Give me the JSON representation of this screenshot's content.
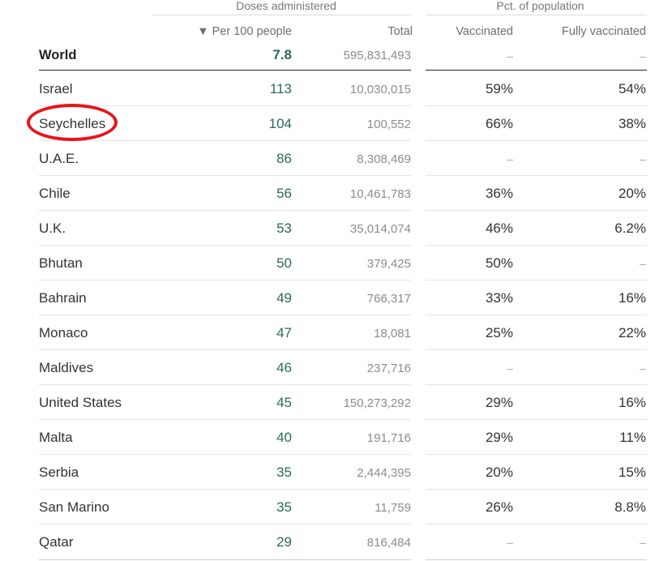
{
  "headers": {
    "group_doses": "Doses administered",
    "group_pct": "Pct. of population",
    "col_per100": "▼ Per 100 people",
    "col_total": "Total",
    "col_vaccinated": "Vaccinated",
    "col_fully": "Fully vaccinated"
  },
  "world": {
    "label": "World",
    "per100": "7.8",
    "total": "595,831,493",
    "vaccinated": "–",
    "fully": "–"
  },
  "rows": [
    {
      "country": "Israel",
      "per100": "113",
      "total": "10,030,015",
      "vaccinated": "59%",
      "fully": "54%"
    },
    {
      "country": "Seychelles",
      "per100": "104",
      "total": "100,552",
      "vaccinated": "66%",
      "fully": "38%"
    },
    {
      "country": "U.A.E.",
      "per100": "86",
      "total": "8,308,469",
      "vaccinated": "–",
      "fully": "–"
    },
    {
      "country": "Chile",
      "per100": "56",
      "total": "10,461,783",
      "vaccinated": "36%",
      "fully": "20%"
    },
    {
      "country": "U.K.",
      "per100": "53",
      "total": "35,014,074",
      "vaccinated": "46%",
      "fully": "6.2%"
    },
    {
      "country": "Bhutan",
      "per100": "50",
      "total": "379,425",
      "vaccinated": "50%",
      "fully": "–"
    },
    {
      "country": "Bahrain",
      "per100": "49",
      "total": "766,317",
      "vaccinated": "33%",
      "fully": "16%"
    },
    {
      "country": "Monaco",
      "per100": "47",
      "total": "18,081",
      "vaccinated": "25%",
      "fully": "22%"
    },
    {
      "country": "Maldives",
      "per100": "46",
      "total": "237,716",
      "vaccinated": "–",
      "fully": "–"
    },
    {
      "country": "United States",
      "per100": "45",
      "total": "150,273,292",
      "vaccinated": "29%",
      "fully": "16%"
    },
    {
      "country": "Malta",
      "per100": "40",
      "total": "191,716",
      "vaccinated": "29%",
      "fully": "11%"
    },
    {
      "country": "Serbia",
      "per100": "35",
      "total": "2,444,395",
      "vaccinated": "20%",
      "fully": "15%"
    },
    {
      "country": "San Marino",
      "per100": "35",
      "total": "11,759",
      "vaccinated": "26%",
      "fully": "8.8%"
    },
    {
      "country": "Qatar",
      "per100": "29",
      "total": "816,484",
      "vaccinated": "–",
      "fully": "–"
    }
  ],
  "highlight": {
    "country": "Seychelles",
    "color": "#e8141b"
  },
  "colors": {
    "accent_green": "#2b6a59",
    "muted_gray": "#8c8c8c"
  }
}
